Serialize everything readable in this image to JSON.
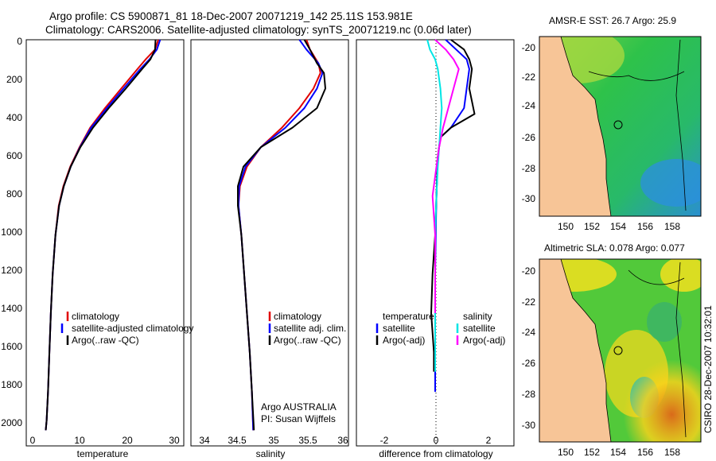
{
  "title": {
    "line1": "Argo profile: CS 5900871_81 18-Dec-2007 20071219_142 25.11S 153.981E",
    "line2": "Climatology: CARS2006. Satellite-adjusted climatology: synTS_20071219.nc (0.06d later)"
  },
  "colors": {
    "climatology": "#e00000",
    "satellite": "#0000ff",
    "argo": "#000000",
    "sal_satellite": "#00e5e5",
    "sal_argo": "#ff00ff",
    "land": "#f7c597"
  },
  "depth_axis": {
    "ticks": [
      "0",
      "200",
      "400",
      "600",
      "800",
      "1000",
      "1200",
      "1400",
      "1600",
      "1800",
      "2000"
    ]
  },
  "panels": {
    "temperature": {
      "xlabel": "temperature",
      "xticks": [
        "0",
        "10",
        "20",
        "30"
      ],
      "legend": [
        "climatology",
        "satellite-adjusted climatology",
        "Argo(..raw -QC)"
      ]
    },
    "salinity": {
      "xlabel": "salinity",
      "xticks": [
        "34",
        "34.5",
        "35",
        "35.5",
        "36"
      ],
      "legend": [
        "climatology",
        "satellite adj. clim.",
        "Argo(..raw -QC)"
      ],
      "credit_line1": "Argo AUSTRALIA",
      "credit_line2": "PI: Susan Wijffels"
    },
    "difference": {
      "xlabel": "difference from climatology",
      "xticks": [
        "-2",
        "0",
        "2"
      ],
      "legend_temp_header": "temperature",
      "legend_temp": [
        "satellite",
        "Argo(-adj)"
      ],
      "legend_sal_header": "salinity",
      "legend_sal": [
        "satellite",
        "Argo(-adj)"
      ]
    }
  },
  "maps": {
    "sst_title": "AMSR-E SST: 26.7 Argo: 25.9",
    "sla_title": "Altimetric SLA: 0.078 Argo: 0.077",
    "yticks": [
      "-20",
      "-22",
      "-24",
      "-26",
      "-28",
      "-30"
    ],
    "xticks": [
      "150",
      "152",
      "154",
      "156",
      "158"
    ]
  },
  "stamp": "CSIRO 28-Dec-2007 10:32:01",
  "chart_data": [
    {
      "type": "line",
      "title": "",
      "xlabel": "temperature",
      "ylabel": "",
      "xlim": [
        -2,
        32
      ],
      "ylim": [
        2080,
        0
      ],
      "series": [
        {
          "name": "climatology",
          "x": [
            26.5,
            25.8,
            23.8,
            22.0,
            18.5,
            15.0,
            11.8,
            9.5,
            7.5,
            6.0,
            5.0,
            4.3,
            3.7,
            3.3,
            3.0,
            2.7,
            2.4,
            2.2
          ],
          "y": [
            0,
            50,
            100,
            150,
            250,
            350,
            450,
            550,
            650,
            750,
            850,
            1000,
            1200,
            1400,
            1600,
            1800,
            1950,
            2000
          ]
        },
        {
          "name": "satellite-adjusted climatology",
          "x": [
            26.9,
            26.2,
            24.6,
            22.6,
            19.0,
            15.4,
            12.0,
            9.6,
            7.6,
            6.1,
            5.1,
            4.3,
            3.7,
            3.3,
            3.0,
            2.7,
            2.4,
            2.2
          ],
          "y": [
            0,
            50,
            100,
            150,
            250,
            350,
            450,
            550,
            650,
            750,
            850,
            1000,
            1200,
            1400,
            1600,
            1800,
            1950,
            2000
          ]
        },
        {
          "name": "Argo(..raw -QC)",
          "x": [
            25.9,
            25.8,
            24.8,
            23.0,
            19.5,
            15.8,
            12.4,
            9.7,
            7.6,
            6.1,
            5.1,
            4.3,
            3.7,
            3.3,
            3.0,
            2.7,
            2.4,
            2.2
          ],
          "y": [
            0,
            50,
            100,
            150,
            250,
            350,
            450,
            550,
            650,
            750,
            850,
            1000,
            1200,
            1400,
            1600,
            1800,
            1950,
            2000
          ]
        }
      ]
    },
    {
      "type": "line",
      "title": "",
      "xlabel": "salinity",
      "ylabel": "",
      "xlim": [
        33.8,
        36.05
      ],
      "ylim": [
        2080,
        0
      ],
      "series": [
        {
          "name": "climatology",
          "x": [
            35.45,
            35.5,
            35.62,
            35.65,
            35.55,
            35.35,
            35.1,
            34.8,
            34.6,
            34.5,
            34.48,
            34.52,
            34.56,
            34.6,
            34.64,
            34.67,
            34.69
          ],
          "y": [
            0,
            50,
            120,
            170,
            250,
            350,
            450,
            550,
            650,
            750,
            850,
            1000,
            1200,
            1400,
            1600,
            1800,
            2000
          ]
        },
        {
          "name": "satellite adj. clim.",
          "x": [
            35.35,
            35.45,
            35.62,
            35.68,
            35.6,
            35.42,
            35.15,
            34.8,
            34.58,
            34.49,
            34.48,
            34.52,
            34.56,
            34.6,
            34.64,
            34.67,
            34.69
          ],
          "y": [
            0,
            50,
            120,
            170,
            250,
            350,
            450,
            550,
            650,
            750,
            850,
            1000,
            1200,
            1400,
            1600,
            1800,
            2000
          ]
        },
        {
          "name": "Argo(..raw -QC)",
          "x": [
            35.42,
            35.5,
            35.6,
            35.7,
            35.72,
            35.6,
            35.25,
            34.8,
            34.55,
            34.47,
            34.47,
            34.52,
            34.56,
            34.6,
            34.64,
            34.67,
            34.7
          ],
          "y": [
            0,
            50,
            120,
            170,
            250,
            350,
            450,
            550,
            650,
            750,
            850,
            1000,
            1200,
            1400,
            1600,
            1800,
            2000
          ]
        }
      ]
    },
    {
      "type": "line",
      "title": "",
      "xlabel": "difference from climatology",
      "ylabel": "",
      "xlim": [
        -3,
        3
      ],
      "ylim": [
        2080,
        0
      ],
      "series": [
        {
          "name": "temperature satellite",
          "x": [
            0.4,
            0.8,
            1.2,
            1.3,
            1.2,
            1.1,
            0.6,
            0.2,
            0.1,
            0.05,
            0.02,
            0.0,
            0.0,
            0.0,
            0.0,
            0.0
          ],
          "y": [
            0,
            50,
            100,
            150,
            250,
            350,
            450,
            500,
            600,
            800,
            1000,
            1200,
            1400,
            1600,
            1800,
            1700
          ]
        },
        {
          "name": "temperature Argo(-adj)",
          "x": [
            0.6,
            1.1,
            1.3,
            1.4,
            1.3,
            1.5,
            0.6,
            0.2,
            0.1,
            0.05,
            0.0,
            -0.1,
            -0.15,
            -0.1,
            -0.05,
            -0.05
          ],
          "y": [
            0,
            50,
            100,
            150,
            250,
            380,
            450,
            500,
            600,
            800,
            1000,
            1200,
            1400,
            1500,
            1600,
            1700
          ]
        },
        {
          "name": "salinity satellite",
          "x": [
            -0.3,
            -0.2,
            0.0,
            0.1,
            0.2,
            0.25,
            0.2,
            0.15,
            0.1,
            0.05,
            0.0,
            0.0,
            0.0,
            0.0
          ],
          "y": [
            0,
            50,
            100,
            150,
            250,
            350,
            450,
            550,
            650,
            800,
            1000,
            1200,
            1400,
            1700
          ]
        },
        {
          "name": "salinity Argo(-adj)",
          "x": [
            0.0,
            0.4,
            0.7,
            0.9,
            0.7,
            0.5,
            0.3,
            0.15,
            0.05,
            -0.1,
            0.0,
            0.0,
            0.0
          ],
          "y": [
            0,
            50,
            100,
            150,
            250,
            350,
            450,
            550,
            650,
            800,
            1000,
            1200,
            1400
          ]
        }
      ]
    }
  ]
}
